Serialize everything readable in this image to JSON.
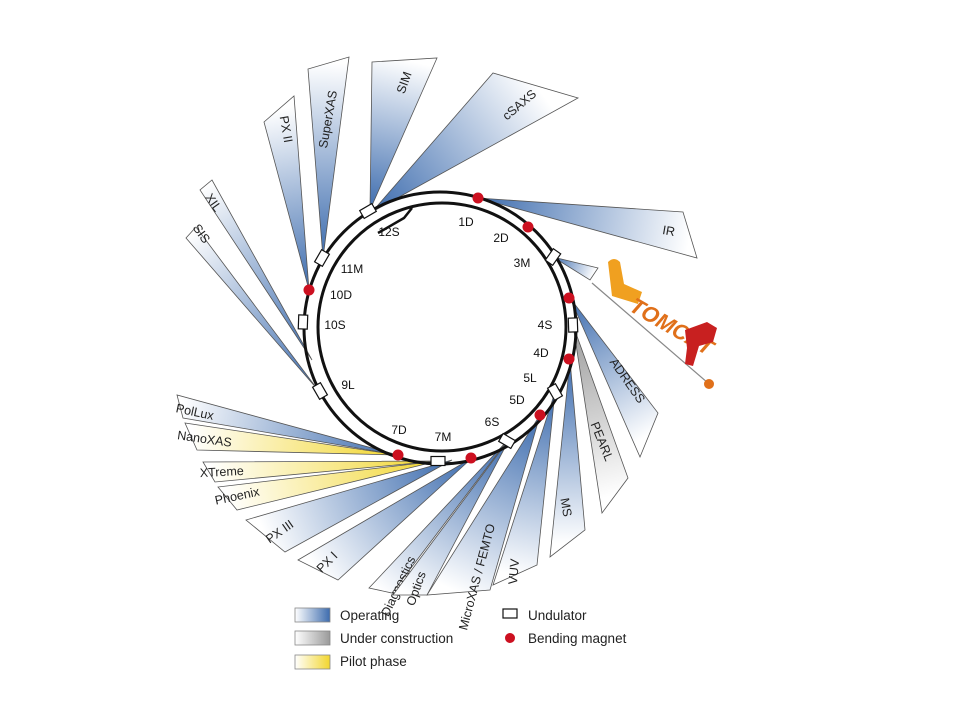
{
  "colors": {
    "operating": "#3d6cae",
    "construction": "#9a9a9a",
    "pilot": "#f2d62e",
    "bending_magnet": "#cc1020",
    "ring": "#111111"
  },
  "beamlines": [
    {
      "name": "IR",
      "status": "operating"
    },
    {
      "name": "cSAXS",
      "status": "operating"
    },
    {
      "name": "SIM",
      "status": "operating"
    },
    {
      "name": "SuperXAS",
      "status": "operating"
    },
    {
      "name": "PX II",
      "status": "operating"
    },
    {
      "name": "XIL",
      "status": "operating"
    },
    {
      "name": "SIS",
      "status": "operating"
    },
    {
      "name": "PolLux",
      "status": "operating"
    },
    {
      "name": "NanoXAS",
      "status": "pilot"
    },
    {
      "name": "XTreme",
      "status": "pilot"
    },
    {
      "name": "Phoenix",
      "status": "pilot"
    },
    {
      "name": "PX III",
      "status": "operating"
    },
    {
      "name": "PX I",
      "status": "operating"
    },
    {
      "name": "Diagnostics",
      "status": "operating"
    },
    {
      "name": "Optics",
      "status": "operating"
    },
    {
      "name": "MicroXAS / FEMTO",
      "status": "operating"
    },
    {
      "name": "VUV",
      "status": "operating"
    },
    {
      "name": "MS",
      "status": "operating"
    },
    {
      "name": "PEARL",
      "status": "construction"
    },
    {
      "name": "ADRESS",
      "status": "operating"
    },
    {
      "name": "TOMCAT",
      "status": "operating"
    }
  ],
  "ring_sections": [
    "1D",
    "2D",
    "3M",
    "4S",
    "4D",
    "5L",
    "5D",
    "6S",
    "7M",
    "7D",
    "9L",
    "10S",
    "10D",
    "11M",
    "12S"
  ],
  "legend": {
    "operating": "Operating",
    "construction": "Under construction",
    "pilot": "Pilot phase",
    "undulator": "Undulator",
    "bending_magnet": "Bending magnet"
  }
}
